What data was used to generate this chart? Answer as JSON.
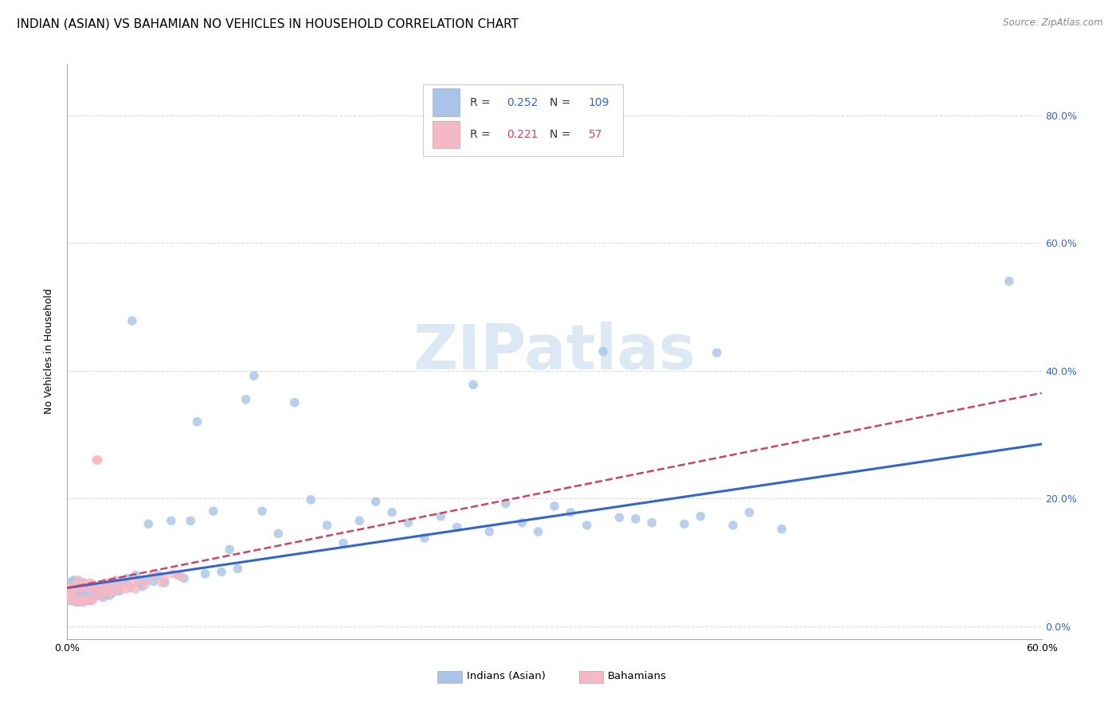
{
  "title": "INDIAN (ASIAN) VS BAHAMIAN NO VEHICLES IN HOUSEHOLD CORRELATION CHART",
  "source": "Source: ZipAtlas.com",
  "ylabel": "No Vehicles in Household",
  "xlim": [
    0.0,
    0.6
  ],
  "ylim": [
    -0.02,
    0.88
  ],
  "xtick_positions": [
    0.0,
    0.1,
    0.2,
    0.3,
    0.4,
    0.5,
    0.6
  ],
  "xtick_labels": [
    "0.0%",
    "",
    "",
    "",
    "",
    "",
    "60.0%"
  ],
  "ytick_positions": [
    0.0,
    0.2,
    0.4,
    0.6,
    0.8
  ],
  "ytick_labels": [
    "0.0%",
    "20.0%",
    "40.0%",
    "60.0%",
    "80.0%"
  ],
  "blue_color": "#a8c4e8",
  "pink_color": "#f5b8c4",
  "blue_line_color": "#3366cc",
  "pink_line_color": "#cc4466",
  "legend_blue_r": "0.252",
  "legend_blue_n": "109",
  "legend_pink_r": "0.221",
  "legend_pink_n": "57",
  "watermark": "ZIPatlas",
  "watermark_color": "#dde8f5",
  "blue_trend_x": [
    0.0,
    0.6
  ],
  "blue_trend_y": [
    0.06,
    0.285
  ],
  "pink_trend_x": [
    0.0,
    0.6
  ],
  "pink_trend_y": [
    0.06,
    0.365
  ],
  "blue_x": [
    0.001,
    0.002,
    0.002,
    0.003,
    0.003,
    0.003,
    0.004,
    0.004,
    0.004,
    0.005,
    0.005,
    0.005,
    0.006,
    0.006,
    0.006,
    0.007,
    0.007,
    0.007,
    0.008,
    0.008,
    0.008,
    0.009,
    0.009,
    0.01,
    0.01,
    0.01,
    0.011,
    0.011,
    0.012,
    0.012,
    0.013,
    0.013,
    0.014,
    0.014,
    0.015,
    0.015,
    0.016,
    0.016,
    0.017,
    0.018,
    0.019,
    0.02,
    0.021,
    0.022,
    0.023,
    0.024,
    0.025,
    0.026,
    0.027,
    0.028,
    0.03,
    0.032,
    0.033,
    0.035,
    0.037,
    0.039,
    0.04,
    0.042,
    0.044,
    0.046,
    0.048,
    0.05,
    0.053,
    0.056,
    0.06,
    0.064,
    0.068,
    0.072,
    0.076,
    0.08,
    0.085,
    0.09,
    0.095,
    0.1,
    0.105,
    0.11,
    0.115,
    0.12,
    0.13,
    0.14,
    0.15,
    0.16,
    0.17,
    0.18,
    0.19,
    0.2,
    0.21,
    0.22,
    0.23,
    0.24,
    0.25,
    0.26,
    0.27,
    0.28,
    0.29,
    0.3,
    0.31,
    0.32,
    0.33,
    0.34,
    0.35,
    0.36,
    0.38,
    0.39,
    0.4,
    0.41,
    0.42,
    0.44,
    0.58
  ],
  "blue_y": [
    0.04,
    0.045,
    0.06,
    0.042,
    0.055,
    0.07,
    0.04,
    0.058,
    0.072,
    0.038,
    0.052,
    0.068,
    0.042,
    0.055,
    0.065,
    0.038,
    0.05,
    0.07,
    0.04,
    0.055,
    0.068,
    0.042,
    0.06,
    0.038,
    0.052,
    0.068,
    0.042,
    0.058,
    0.04,
    0.06,
    0.044,
    0.062,
    0.042,
    0.058,
    0.04,
    0.062,
    0.046,
    0.065,
    0.048,
    0.055,
    0.062,
    0.048,
    0.055,
    0.045,
    0.065,
    0.05,
    0.058,
    0.048,
    0.068,
    0.052,
    0.06,
    0.055,
    0.07,
    0.065,
    0.075,
    0.06,
    0.478,
    0.08,
    0.068,
    0.062,
    0.072,
    0.16,
    0.07,
    0.08,
    0.068,
    0.165,
    0.08,
    0.075,
    0.165,
    0.32,
    0.082,
    0.18,
    0.085,
    0.12,
    0.09,
    0.355,
    0.392,
    0.18,
    0.145,
    0.35,
    0.198,
    0.158,
    0.13,
    0.165,
    0.195,
    0.178,
    0.162,
    0.138,
    0.172,
    0.155,
    0.378,
    0.148,
    0.192,
    0.162,
    0.148,
    0.188,
    0.178,
    0.158,
    0.43,
    0.17,
    0.168,
    0.162,
    0.16,
    0.172,
    0.428,
    0.158,
    0.178,
    0.152,
    0.54
  ],
  "pink_x": [
    0.001,
    0.002,
    0.002,
    0.003,
    0.003,
    0.004,
    0.004,
    0.005,
    0.005,
    0.006,
    0.006,
    0.007,
    0.007,
    0.008,
    0.008,
    0.009,
    0.009,
    0.01,
    0.01,
    0.011,
    0.011,
    0.012,
    0.012,
    0.013,
    0.013,
    0.014,
    0.014,
    0.015,
    0.015,
    0.016,
    0.016,
    0.017,
    0.018,
    0.019,
    0.02,
    0.021,
    0.022,
    0.023,
    0.024,
    0.025,
    0.026,
    0.027,
    0.028,
    0.03,
    0.032,
    0.034,
    0.036,
    0.038,
    0.04,
    0.042,
    0.044,
    0.048,
    0.052,
    0.058,
    0.06,
    0.065,
    0.07
  ],
  "pink_y": [
    0.042,
    0.048,
    0.06,
    0.044,
    0.062,
    0.04,
    0.058,
    0.042,
    0.065,
    0.04,
    0.058,
    0.042,
    0.072,
    0.04,
    0.062,
    0.038,
    0.06,
    0.042,
    0.068,
    0.04,
    0.062,
    0.04,
    0.06,
    0.042,
    0.065,
    0.04,
    0.068,
    0.04,
    0.06,
    0.042,
    0.065,
    0.055,
    0.26,
    0.26,
    0.06,
    0.048,
    0.065,
    0.055,
    0.068,
    0.062,
    0.052,
    0.068,
    0.055,
    0.072,
    0.058,
    0.065,
    0.058,
    0.062,
    0.068,
    0.058,
    0.072,
    0.065,
    0.078,
    0.068,
    0.075,
    0.082,
    0.078
  ],
  "marker_size": 70,
  "marker_alpha": 0.8,
  "grid_color": "#cccccc",
  "grid_alpha": 0.7,
  "title_fontsize": 11,
  "tick_fontsize": 9,
  "right_ytick_color": "#3366cc"
}
